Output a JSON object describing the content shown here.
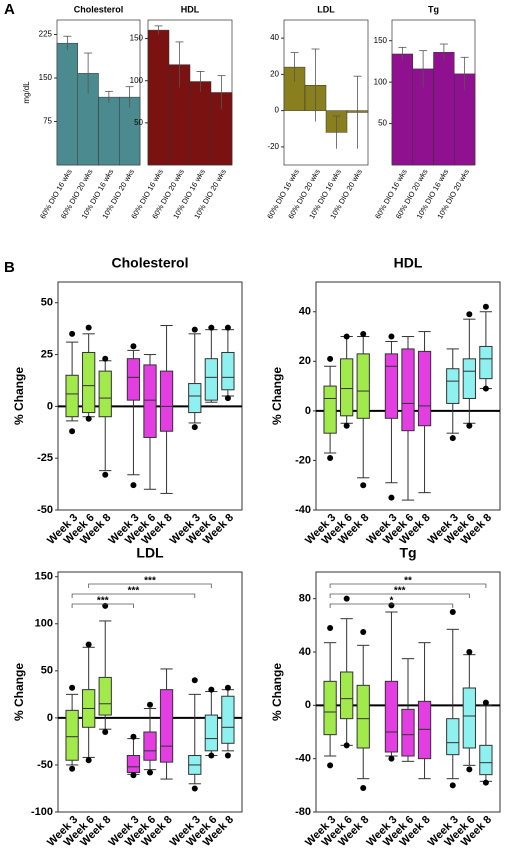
{
  "panel_labels": [
    "A",
    "B"
  ],
  "chart_data": [
    {
      "type": "bar",
      "title": "Cholesterol",
      "ylabel": "mg/dL",
      "categories": [
        "60% DIO 16 wks",
        "60% DIO 20 wks",
        "10% DIO 16 wks",
        "10% DIO 20 wks"
      ],
      "values": [
        210,
        158,
        117,
        117
      ],
      "errors": [
        12,
        35,
        10,
        18
      ],
      "color": "#4b8a8e",
      "ylim": [
        0,
        250
      ],
      "yticks": [
        75,
        150,
        225
      ]
    },
    {
      "type": "bar",
      "title": "HDL",
      "categories": [
        "60% DIO 16 wks",
        "60% DIO 20 wks",
        "10% DIO 16 wks",
        "10% DIO 20 wks"
      ],
      "values": [
        160,
        119,
        99,
        86
      ],
      "errors": [
        5,
        27,
        12,
        20
      ],
      "color": "#7a1212",
      "ylim": [
        0,
        172
      ],
      "yticks": [
        50,
        100,
        150
      ]
    },
    {
      "type": "bar",
      "title": "LDL",
      "categories": [
        "60% DIO 16 wks",
        "60% DIO 20 wks",
        "10% DIO 16 wks",
        "10% DIO 20 wks"
      ],
      "values": [
        24,
        14,
        -12,
        -1
      ],
      "errors": [
        8,
        20,
        9,
        20
      ],
      "color": "#8a7f1e",
      "ylim": [
        -30,
        50
      ],
      "yticks": [
        -20,
        0,
        20,
        40
      ]
    },
    {
      "type": "bar",
      "title": "Tg",
      "categories": [
        "60% DIO 16 wks",
        "60% DIO 20 wks",
        "10% DIO 16 wks",
        "10% DIO 20 wks"
      ],
      "values": [
        134,
        116,
        136,
        110
      ],
      "errors": [
        8,
        22,
        10,
        20
      ],
      "color": "#8f118f",
      "ylim": [
        0,
        175
      ],
      "yticks": [
        50,
        100,
        150
      ]
    },
    {
      "type": "box",
      "title": "Cholesterol",
      "ylabel": "% Change",
      "categories": [
        "Week 3",
        "Week 6",
        "Week 8"
      ],
      "ylim": [
        -50,
        60
      ],
      "yticks": [
        -50,
        -25,
        0,
        25,
        50
      ],
      "zero_line": true,
      "series": [
        {
          "color": "#a2ea4c",
          "boxes": [
            {
              "whislo": -7,
              "q1": -5,
              "med": 6,
              "q3": 15,
              "whishi": 31,
              "fliers": [
                35,
                -12
              ]
            },
            {
              "whislo": -5,
              "q1": -3,
              "med": 10,
              "q3": 26,
              "whishi": 35,
              "fliers": [
                38,
                -6
              ]
            },
            {
              "whislo": -31,
              "q1": -5,
              "med": 4,
              "q3": 17,
              "whishi": 22,
              "fliers": [
                23,
                -33
              ]
            }
          ]
        },
        {
          "color": "#e23ee2",
          "boxes": [
            {
              "whislo": -33,
              "q1": 3,
              "med": 14,
              "q3": 23,
              "whishi": 27,
              "fliers": [
                29,
                -38
              ]
            },
            {
              "whislo": -40,
              "q1": -15,
              "med": 3,
              "q3": 20,
              "whishi": 25,
              "fliers": []
            },
            {
              "whislo": -42,
              "q1": -12,
              "med": 0,
              "q3": 17,
              "whishi": 39,
              "fliers": []
            }
          ]
        },
        {
          "color": "#8ff0f0",
          "boxes": [
            {
              "whislo": -8,
              "q1": -3,
              "med": 5,
              "q3": 11,
              "whishi": 35,
              "fliers": [
                37,
                -10
              ]
            },
            {
              "whislo": 2,
              "q1": 3,
              "med": 14,
              "q3": 23,
              "whishi": 37,
              "fliers": [
                38
              ]
            },
            {
              "whislo": 5,
              "q1": 8,
              "med": 14,
              "q3": 26,
              "whishi": 37,
              "fliers": [
                38,
                4
              ]
            }
          ]
        }
      ],
      "significance": []
    },
    {
      "type": "box",
      "title": "HDL",
      "ylabel": "% Change",
      "categories": [
        "Week 3",
        "Week 6",
        "Week 8"
      ],
      "ylim": [
        -40,
        52
      ],
      "yticks": [
        -40,
        -20,
        0,
        20,
        40
      ],
      "zero_line": true,
      "series": [
        {
          "color": "#a2ea4c",
          "boxes": [
            {
              "whislo": -17,
              "q1": -9,
              "med": 5,
              "q3": 10,
              "whishi": 18,
              "fliers": [
                21,
                -19
              ]
            },
            {
              "whislo": -5,
              "q1": -2,
              "med": 9,
              "q3": 21,
              "whishi": 30,
              "fliers": [
                30,
                -6
              ]
            },
            {
              "whislo": -27,
              "q1": -3,
              "med": 8,
              "q3": 23,
              "whishi": 30,
              "fliers": [
                31,
                -30
              ]
            }
          ]
        },
        {
          "color": "#e23ee2",
          "boxes": [
            {
              "whislo": -29,
              "q1": -3,
              "med": 18,
              "q3": 23,
              "whishi": 28,
              "fliers": [
                30,
                -35
              ]
            },
            {
              "whislo": -36,
              "q1": -8,
              "med": 3,
              "q3": 25,
              "whishi": 30,
              "fliers": []
            },
            {
              "whislo": -33,
              "q1": -6,
              "med": 2,
              "q3": 24,
              "whishi": 32,
              "fliers": []
            }
          ]
        },
        {
          "color": "#8ff0f0",
          "boxes": [
            {
              "whislo": -9,
              "q1": 3,
              "med": 12,
              "q3": 17,
              "whishi": 25,
              "fliers": [
                -11
              ]
            },
            {
              "whislo": -5,
              "q1": 5,
              "med": 16,
              "q3": 21,
              "whishi": 37,
              "fliers": [
                39,
                -6
              ]
            },
            {
              "whislo": 9,
              "q1": 13,
              "med": 21,
              "q3": 26,
              "whishi": 40,
              "fliers": [
                42,
                9
              ]
            }
          ]
        }
      ],
      "significance": []
    },
    {
      "type": "box",
      "title": "LDL",
      "ylabel": "% Change",
      "categories": [
        "Week 3",
        "Week 6",
        "Week 8"
      ],
      "ylim": [
        -100,
        155
      ],
      "yticks": [
        -100,
        -50,
        0,
        50,
        100,
        150
      ],
      "zero_line": true,
      "series": [
        {
          "color": "#a2ea4c",
          "boxes": [
            {
              "whislo": -50,
              "q1": -45,
              "med": -20,
              "q3": 8,
              "whishi": 25,
              "fliers": [
                32,
                -54
              ]
            },
            {
              "whislo": -42,
              "q1": -10,
              "med": 10,
              "q3": 30,
              "whishi": 75,
              "fliers": [
                78,
                -45
              ]
            },
            {
              "whislo": -12,
              "q1": 3,
              "med": 15,
              "q3": 43,
              "whishi": 103,
              "fliers": [
                119,
                -15
              ]
            }
          ]
        },
        {
          "color": "#e23ee2",
          "boxes": [
            {
              "whislo": -60,
              "q1": -58,
              "med": -52,
              "q3": -40,
              "whishi": -22,
              "fliers": [
                -20,
                -61
              ]
            },
            {
              "whislo": -55,
              "q1": -45,
              "med": -35,
              "q3": -15,
              "whishi": 10,
              "fliers": [
                14,
                -58
              ]
            },
            {
              "whislo": -65,
              "q1": -47,
              "med": -30,
              "q3": 30,
              "whishi": 52,
              "fliers": []
            }
          ]
        },
        {
          "color": "#8ff0f0",
          "boxes": [
            {
              "whislo": -70,
              "q1": -60,
              "med": -50,
              "q3": -40,
              "whishi": 25,
              "fliers": [
                40,
                -75
              ]
            },
            {
              "whislo": -40,
              "q1": -35,
              "med": -22,
              "q3": 3,
              "whishi": 28,
              "fliers": [
                30,
                -40
              ]
            },
            {
              "whislo": -35,
              "q1": -27,
              "med": -10,
              "q3": 23,
              "whishi": 30,
              "fliers": [
                32,
                -40
              ]
            }
          ]
        }
      ],
      "significance": [
        {
          "text": "***",
          "from": 0,
          "to": 3
        },
        {
          "text": "***",
          "from": 0,
          "to": 6
        },
        {
          "text": "***",
          "from": 1,
          "to": 7
        }
      ]
    },
    {
      "type": "box",
      "title": "Tg",
      "ylabel": "% Change",
      "categories": [
        "Week 3",
        "Week 6",
        "Week 8"
      ],
      "ylim": [
        -80,
        100
      ],
      "yticks": [
        -80,
        -40,
        0,
        40,
        80
      ],
      "zero_line": true,
      "series": [
        {
          "color": "#a2ea4c",
          "boxes": [
            {
              "whislo": -38,
              "q1": -22,
              "med": -5,
              "q3": 18,
              "whishi": 47,
              "fliers": [
                58,
                -45
              ]
            },
            {
              "whislo": -30,
              "q1": -10,
              "med": 5,
              "q3": 25,
              "whishi": 65,
              "fliers": [
                80,
                -30
              ]
            },
            {
              "whislo": -55,
              "q1": -32,
              "med": -10,
              "q3": 15,
              "whishi": 45,
              "fliers": [
                55,
                -62
              ]
            }
          ]
        },
        {
          "color": "#e23ee2",
          "boxes": [
            {
              "whislo": -38,
              "q1": -35,
              "med": -20,
              "q3": 18,
              "whishi": 70,
              "fliers": [
                75,
                -40
              ]
            },
            {
              "whislo": -42,
              "q1": -38,
              "med": -22,
              "q3": -3,
              "whishi": 35,
              "fliers": []
            },
            {
              "whislo": -55,
              "q1": -40,
              "med": -18,
              "q3": 3,
              "whishi": 47,
              "fliers": []
            }
          ]
        },
        {
          "color": "#8ff0f0",
          "boxes": [
            {
              "whislo": -55,
              "q1": -37,
              "med": -28,
              "q3": -10,
              "whishi": 57,
              "fliers": [
                70,
                -60
              ]
            },
            {
              "whislo": -45,
              "q1": -32,
              "med": -8,
              "q3": 13,
              "whishi": 38,
              "fliers": [
                40,
                -48
              ]
            },
            {
              "whislo": -57,
              "q1": -52,
              "med": -43,
              "q3": -30,
              "whishi": 0,
              "fliers": [
                2,
                -58
              ]
            }
          ]
        }
      ],
      "significance": [
        {
          "text": "*",
          "from": 0,
          "to": 6
        },
        {
          "text": "***",
          "from": 0,
          "to": 7
        },
        {
          "text": "**",
          "from": 0,
          "to": 8
        }
      ]
    }
  ]
}
